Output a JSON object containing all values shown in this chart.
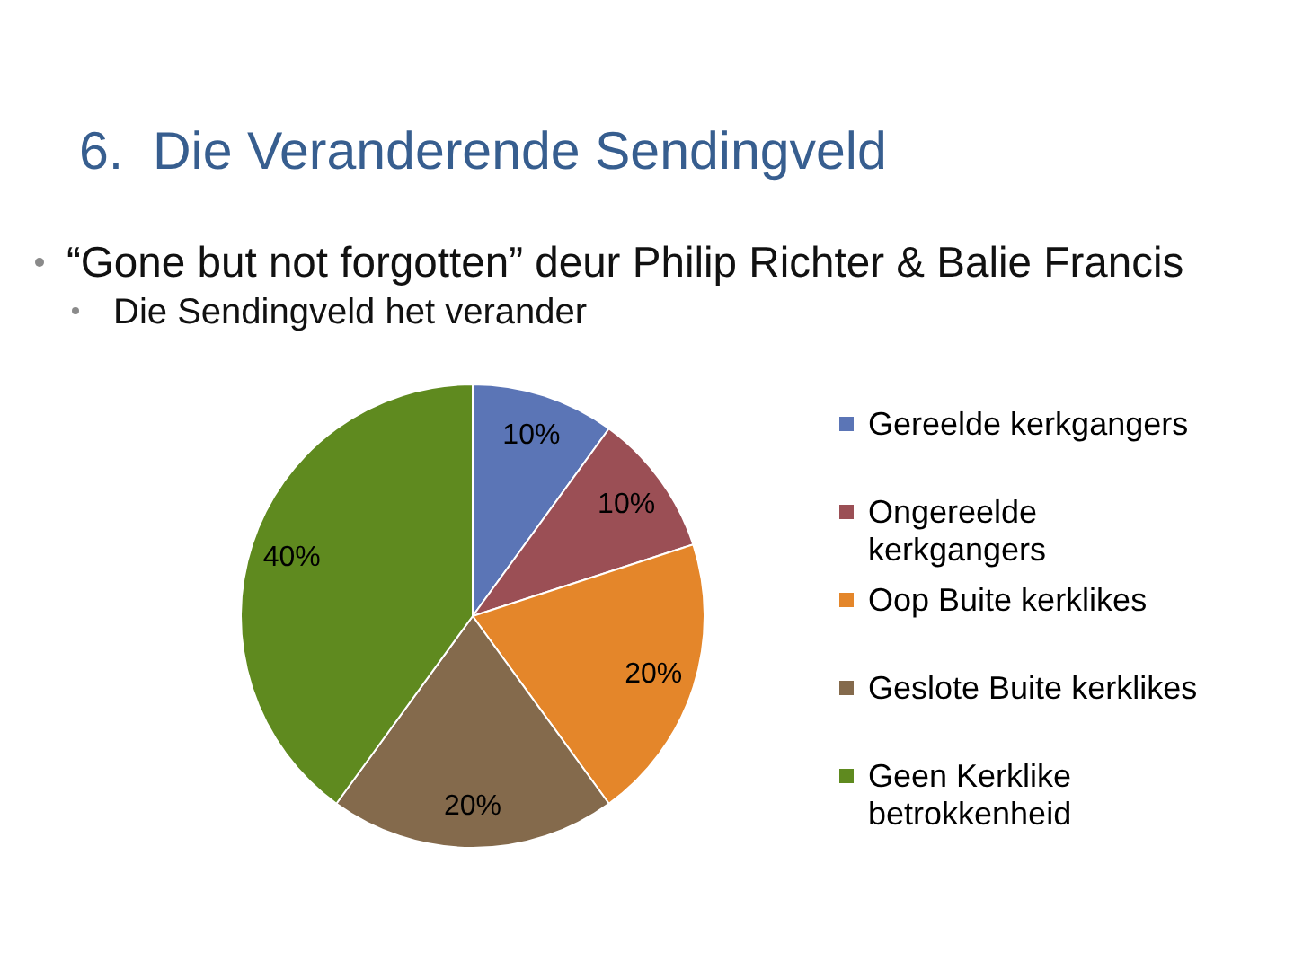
{
  "chart_data": {
    "type": "pie",
    "title": "6.  Die Veranderende Sendingveld",
    "subtitle": "“Gone but not forgotten” deur Philip Richter & Balie Francis",
    "annotations": [
      "Die Sendingveld het verander"
    ],
    "categories": [
      "Gereelde kerkgangers",
      "Ongereelde kerkgangers",
      "Oop Buite kerklikes",
      "Geslote Buite kerklikes",
      "Geen Kerklike betrokkenheid"
    ],
    "values": [
      10,
      10,
      20,
      20,
      40
    ],
    "colors": [
      "#5b75b6",
      "#9b4f55",
      "#e4862a",
      "#846a4c",
      "#5f8a1f"
    ],
    "value_labels": [
      "10%",
      "10%",
      "20%",
      "20%",
      "40%"
    ],
    "legend": "right"
  }
}
